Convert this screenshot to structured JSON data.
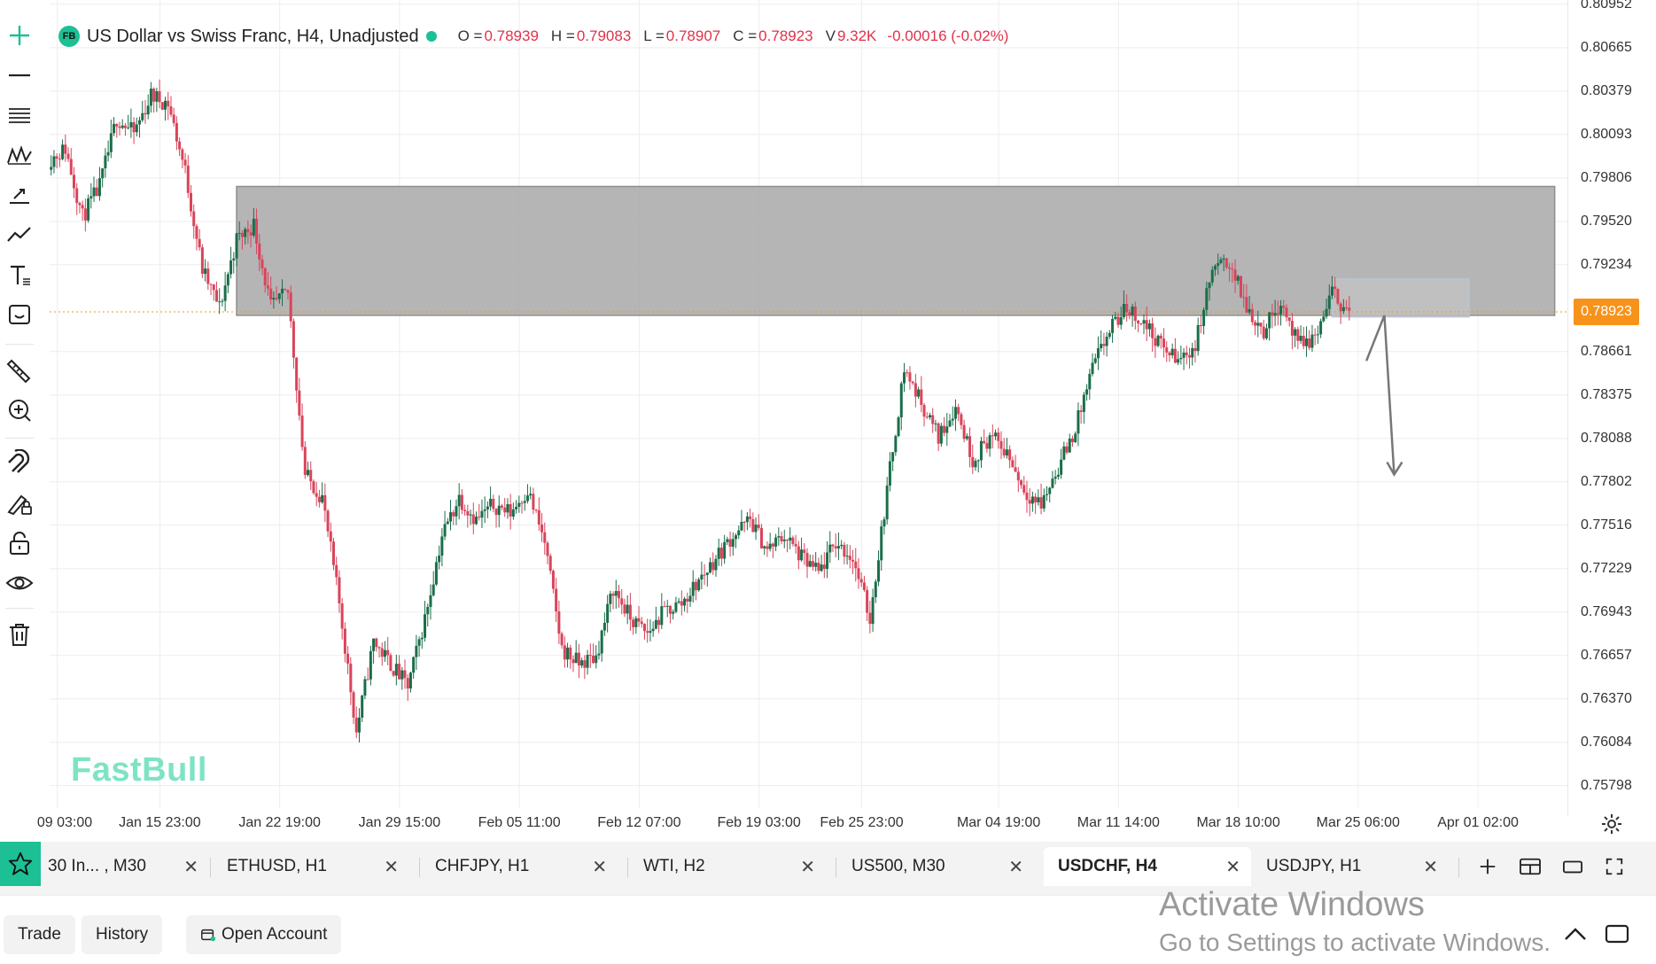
{
  "header": {
    "badge": "FB",
    "title": "US Dollar vs Swiss Franc, H4, Unadjusted",
    "ohlc": [
      {
        "label": "O =",
        "value": "0.78939"
      },
      {
        "label": "H =",
        "value": "0.79083"
      },
      {
        "label": "L =",
        "value": "0.78907"
      },
      {
        "label": "C =",
        "value": "0.78923"
      },
      {
        "label": "V",
        "value": "9.32K"
      }
    ],
    "change": "-0.00016 (-0.02%)"
  },
  "watermark": "FastBull",
  "price_axis": {
    "ticks": [
      "0.80952",
      "0.80665",
      "0.80379",
      "0.80093",
      "0.79806",
      "0.79520",
      "0.79234",
      "0.78661",
      "0.78375",
      "0.78088",
      "0.77802",
      "0.77516",
      "0.77229",
      "0.76943",
      "0.76657",
      "0.76370",
      "0.76084",
      "0.75798"
    ],
    "current_price": "0.78923"
  },
  "time_axis": {
    "ticks": [
      "09 03:00",
      "Jan 15 23:00",
      "Jan 22 19:00",
      "Jan 29 15:00",
      "Feb 05 11:00",
      "Feb 12 07:00",
      "Feb 19 03:00",
      "Feb 25 23:00",
      "Mar 04 19:00",
      "Mar 11 14:00",
      "Mar 18 10:00",
      "Mar 25 06:00",
      "Apr 01 02:00"
    ]
  },
  "tabs": [
    {
      "label": "30 In... , M30",
      "active": false
    },
    {
      "label": "ETHUSD, H1",
      "active": false
    },
    {
      "label": "CHFJPY, H1",
      "active": false
    },
    {
      "label": "WTI, H2",
      "active": false
    },
    {
      "label": "US500, M30",
      "active": false
    },
    {
      "label": "USDCHF, H4",
      "active": true
    },
    {
      "label": "USDJPY, H1",
      "active": false
    }
  ],
  "bottom": {
    "trade": "Trade",
    "history": "History",
    "open_account": "Open Account"
  },
  "os_overlay": {
    "title": "Activate Windows",
    "subtitle": "Go to Settings to activate Windows."
  },
  "colors": {
    "up": "#1a6e4a",
    "down": "#d9445a",
    "accent": "#1dbf94",
    "price_tag": "#f7931a",
    "zone": "#9e9e9e"
  },
  "icons": [
    "plus-cross-icon",
    "horizontal-line-icon",
    "parallel-channel-icon",
    "pattern-icon",
    "projection-icon",
    "trend-icon",
    "text-icon",
    "emoji-icon",
    "ruler-icon",
    "zoom-in-icon",
    "magnet-icon",
    "lock-drawing-icon",
    "lock-icon",
    "eye-icon",
    "trash-icon",
    "gear-icon",
    "star-icon",
    "close-icon",
    "plus-icon",
    "layout-icon",
    "single-window-icon",
    "fullscreen-icon",
    "chevron-up-icon",
    "window-icon"
  ],
  "chart_data": {
    "type": "candlestick",
    "symbol": "USDCHF",
    "timeframe": "H4",
    "ylim": [
      0.7565,
      0.8098
    ],
    "x_labels": [
      "09 03:00",
      "Jan 15 23:00",
      "Jan 22 19:00",
      "Jan 29 15:00",
      "Feb 05 11:00",
      "Feb 12 07:00",
      "Feb 19 03:00",
      "Feb 25 23:00",
      "Mar 04 19:00",
      "Mar 11 14:00",
      "Mar 18 10:00",
      "Mar 25 06:00",
      "Apr 01 02:00"
    ],
    "zones": [
      {
        "label": "",
        "low": 0.789,
        "high": 0.7975,
        "start": "Jan 20",
        "end": "Apr 06"
      },
      {
        "label": "",
        "low": 0.7889,
        "high": 0.7914,
        "start": "Mar 24",
        "end": "Apr 01"
      }
    ],
    "projection": [
      0.786,
      0.789,
      0.7785
    ],
    "path": [
      {
        "date": "Jan 09",
        "price": 0.7992
      },
      {
        "date": "Jan 10",
        "price": 0.8
      },
      {
        "date": "Jan 11",
        "price": 0.7955
      },
      {
        "date": "Jan 12",
        "price": 0.7975
      },
      {
        "date": "Jan 13",
        "price": 0.802
      },
      {
        "date": "Jan 14",
        "price": 0.801
      },
      {
        "date": "Jan 15",
        "price": 0.8035
      },
      {
        "date": "Jan 16",
        "price": 0.803
      },
      {
        "date": "Jan 17",
        "price": 0.7985
      },
      {
        "date": "Jan 18",
        "price": 0.792
      },
      {
        "date": "Jan 19",
        "price": 0.7895
      },
      {
        "date": "Jan 20",
        "price": 0.794
      },
      {
        "date": "Jan 21",
        "price": 0.795
      },
      {
        "date": "Jan 22",
        "price": 0.7895
      },
      {
        "date": "Jan 23",
        "price": 0.7905
      },
      {
        "date": "Jan 24",
        "price": 0.7785
      },
      {
        "date": "Jan 25",
        "price": 0.777
      },
      {
        "date": "Jan 26",
        "price": 0.77
      },
      {
        "date": "Jan 27",
        "price": 0.7615
      },
      {
        "date": "Jan 28",
        "price": 0.7675
      },
      {
        "date": "Jan 29",
        "price": 0.766
      },
      {
        "date": "Jan 30",
        "price": 0.7645
      },
      {
        "date": "Jan 31",
        "price": 0.769
      },
      {
        "date": "Feb 01",
        "price": 0.7745
      },
      {
        "date": "Feb 02",
        "price": 0.777
      },
      {
        "date": "Feb 03",
        "price": 0.7755
      },
      {
        "date": "Feb 04",
        "price": 0.7765
      },
      {
        "date": "Feb 05",
        "price": 0.776
      },
      {
        "date": "Feb 06",
        "price": 0.7775
      },
      {
        "date": "Feb 07",
        "price": 0.774
      },
      {
        "date": "Feb 08",
        "price": 0.767
      },
      {
        "date": "Feb 09",
        "price": 0.766
      },
      {
        "date": "Feb 10",
        "price": 0.7665
      },
      {
        "date": "Feb 11",
        "price": 0.771
      },
      {
        "date": "Feb 12",
        "price": 0.769
      },
      {
        "date": "Feb 13",
        "price": 0.768
      },
      {
        "date": "Feb 14",
        "price": 0.7695
      },
      {
        "date": "Feb 15",
        "price": 0.77
      },
      {
        "date": "Feb 16",
        "price": 0.7715
      },
      {
        "date": "Feb 17",
        "price": 0.773
      },
      {
        "date": "Feb 18",
        "price": 0.7745
      },
      {
        "date": "Feb 19",
        "price": 0.7755
      },
      {
        "date": "Feb 20",
        "price": 0.7735
      },
      {
        "date": "Feb 21",
        "price": 0.7745
      },
      {
        "date": "Feb 22",
        "price": 0.773
      },
      {
        "date": "Feb 23",
        "price": 0.772
      },
      {
        "date": "Feb 24",
        "price": 0.774
      },
      {
        "date": "Feb 25",
        "price": 0.773
      },
      {
        "date": "Feb 26",
        "price": 0.769
      },
      {
        "date": "Feb 27",
        "price": 0.7775
      },
      {
        "date": "Feb 28",
        "price": 0.7855
      },
      {
        "date": "Mar 01",
        "price": 0.781
      },
      {
        "date": "Mar 02",
        "price": 0.783
      },
      {
        "date": "Mar 03",
        "price": 0.7795
      },
      {
        "date": "Mar 04",
        "price": 0.781
      },
      {
        "date": "Mar 05",
        "price": 0.78
      },
      {
        "date": "Mar 06",
        "price": 0.7775
      },
      {
        "date": "Mar 07",
        "price": 0.7765
      },
      {
        "date": "Mar 08",
        "price": 0.779
      },
      {
        "date": "Mar 09",
        "price": 0.7815
      },
      {
        "date": "Mar 10",
        "price": 0.7855
      },
      {
        "date": "Mar 11",
        "price": 0.788
      },
      {
        "date": "Mar 12",
        "price": 0.7895
      },
      {
        "date": "Mar 13",
        "price": 0.7885
      },
      {
        "date": "Mar 14",
        "price": 0.787
      },
      {
        "date": "Mar 15",
        "price": 0.786
      },
      {
        "date": "Mar 16",
        "price": 0.787
      },
      {
        "date": "Mar 17",
        "price": 0.792
      },
      {
        "date": "Mar 18",
        "price": 0.7925
      },
      {
        "date": "Mar 19",
        "price": 0.7895
      },
      {
        "date": "Mar 20",
        "price": 0.788
      },
      {
        "date": "Mar 21",
        "price": 0.79
      },
      {
        "date": "Mar 22",
        "price": 0.787
      },
      {
        "date": "Mar 23",
        "price": 0.7875
      },
      {
        "date": "Mar 24",
        "price": 0.7905
      },
      {
        "date": "Mar 25",
        "price": 0.7892
      }
    ]
  }
}
